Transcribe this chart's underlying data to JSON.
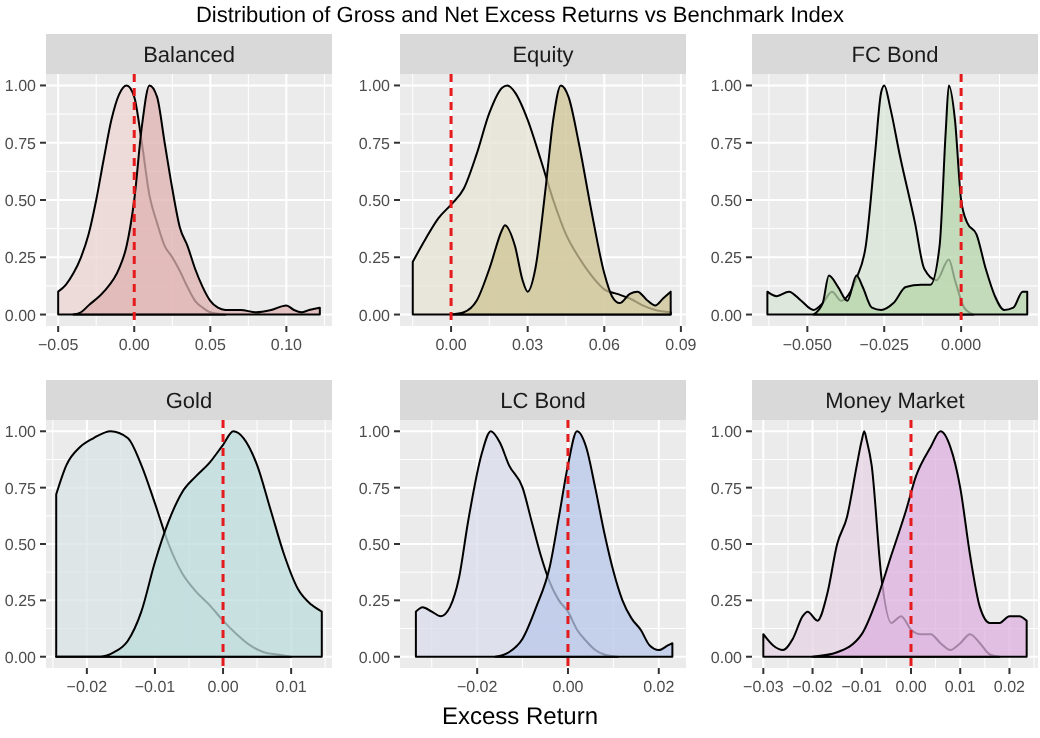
{
  "chart_data": [
    {
      "type": "area",
      "title": "Balanced",
      "annotations": [
        "Distribution of Gross and Net Excess Returns vs Benchmark Index"
      ],
      "grid": true,
      "xlim": [
        -0.058,
        0.13
      ],
      "xticks": [
        {
          "value": -0.05,
          "label": "−0.05"
        },
        {
          "value": 0,
          "label": "0.00"
        },
        {
          "value": 0.05,
          "label": "0.05"
        },
        {
          "value": 0.1,
          "label": "0.10"
        }
      ],
      "ylim": [
        -0.05,
        1.05
      ],
      "yticks": [
        {
          "value": 0,
          "label": "0.00"
        },
        {
          "value": 0.25,
          "label": "0.25"
        },
        {
          "value": 0.5,
          "label": "0.50"
        },
        {
          "value": 0.75,
          "label": "0.75"
        },
        {
          "value": 1,
          "label": "1.00"
        }
      ],
      "ref_lines": [
        {
          "axis": "x",
          "value": 0,
          "color": "#e41a1c",
          "line_style": "dashed"
        }
      ],
      "series": [
        {
          "color": "#ecd5d3",
          "x": [
            -0.05,
            -0.045,
            -0.04,
            -0.035,
            -0.03,
            -0.025,
            -0.02,
            -0.015,
            -0.01,
            -0.005,
            0,
            0.005,
            0.01,
            0.015,
            0.02,
            0.025,
            0.03,
            0.035,
            0.04,
            0.045,
            0.05,
            0.06
          ],
          "values": [
            0.1,
            0.13,
            0.18,
            0.25,
            0.35,
            0.5,
            0.68,
            0.85,
            0.96,
            1.0,
            0.95,
            0.75,
            0.52,
            0.4,
            0.3,
            0.25,
            0.19,
            0.12,
            0.06,
            0.03,
            0.01,
            0
          ]
        },
        {
          "color": "#dfb2b0",
          "x": [
            -0.04,
            -0.035,
            -0.03,
            -0.02,
            -0.01,
            -0.005,
            0,
            0.005,
            0.01,
            0.015,
            0.02,
            0.025,
            0.03,
            0.035,
            0.04,
            0.045,
            0.05,
            0.055,
            0.06,
            0.07,
            0.08,
            0.09,
            0.1,
            0.105,
            0.11,
            0.115,
            0.122
          ],
          "values": [
            0,
            0.01,
            0.04,
            0.1,
            0.2,
            0.3,
            0.5,
            0.82,
            1.0,
            0.95,
            0.75,
            0.55,
            0.38,
            0.3,
            0.2,
            0.12,
            0.06,
            0.03,
            0.02,
            0.02,
            0.01,
            0.02,
            0.04,
            0.02,
            0.01,
            0.02,
            0.03
          ]
        }
      ]
    },
    {
      "type": "area",
      "title": "Equity",
      "grid": true,
      "xlim": [
        -0.02,
        0.092
      ],
      "xticks": [
        {
          "value": 0,
          "label": "0.00"
        },
        {
          "value": 0.03,
          "label": "0.03"
        },
        {
          "value": 0.06,
          "label": "0.06"
        },
        {
          "value": 0.09,
          "label": "0.09"
        }
      ],
      "ylim": [
        -0.05,
        1.05
      ],
      "yticks": [
        {
          "value": 0,
          "label": "0.00"
        },
        {
          "value": 0.25,
          "label": "0.25"
        },
        {
          "value": 0.5,
          "label": "0.50"
        },
        {
          "value": 0.75,
          "label": "0.75"
        },
        {
          "value": 1,
          "label": "1.00"
        }
      ],
      "ref_lines": [
        {
          "axis": "x",
          "value": 0,
          "color": "#e41a1c",
          "line_style": "dashed"
        }
      ],
      "series": [
        {
          "color": "#e7e4d6",
          "x": [
            -0.015,
            -0.01,
            -0.005,
            0,
            0.005,
            0.01,
            0.015,
            0.02,
            0.022,
            0.025,
            0.03,
            0.035,
            0.04,
            0.045,
            0.05,
            0.055,
            0.06,
            0.065,
            0.07,
            0.075,
            0.08,
            0.086
          ],
          "values": [
            0.23,
            0.33,
            0.42,
            0.48,
            0.55,
            0.7,
            0.88,
            0.99,
            1.0,
            0.97,
            0.85,
            0.68,
            0.5,
            0.35,
            0.25,
            0.17,
            0.11,
            0.09,
            0.07,
            0.04,
            0.02,
            0.01
          ]
        },
        {
          "color": "#cfc494",
          "x": [
            0,
            0.005,
            0.01,
            0.015,
            0.02,
            0.021,
            0.025,
            0.028,
            0.03,
            0.033,
            0.037,
            0.04,
            0.043,
            0.046,
            0.05,
            0.055,
            0.06,
            0.063,
            0.066,
            0.07,
            0.073,
            0.077,
            0.08,
            0.083,
            0.086
          ],
          "values": [
            0,
            0.01,
            0.06,
            0.2,
            0.37,
            0.39,
            0.3,
            0.15,
            0.1,
            0.2,
            0.55,
            0.85,
            1.0,
            0.95,
            0.75,
            0.45,
            0.18,
            0.08,
            0.05,
            0.09,
            0.1,
            0.06,
            0.04,
            0.07,
            0.1
          ]
        }
      ]
    },
    {
      "type": "area",
      "title": "FC Bond",
      "grid": true,
      "xlim": [
        -0.068,
        0.025
      ],
      "xticks": [
        {
          "value": -0.05,
          "label": "−0.050"
        },
        {
          "value": -0.025,
          "label": "−0.025"
        },
        {
          "value": 0,
          "label": "0.000"
        }
      ],
      "ylim": [
        -0.05,
        1.05
      ],
      "yticks": [
        {
          "value": 0,
          "label": "0.00"
        },
        {
          "value": 0.25,
          "label": "0.25"
        },
        {
          "value": 0.5,
          "label": "0.50"
        },
        {
          "value": 0.75,
          "label": "0.75"
        },
        {
          "value": 1,
          "label": "1.00"
        }
      ],
      "ref_lines": [
        {
          "axis": "x",
          "value": 0,
          "color": "#e41a1c",
          "line_style": "dashed"
        }
      ],
      "series": [
        {
          "color": "#d9e6d6",
          "x": [
            -0.063,
            -0.06,
            -0.056,
            -0.052,
            -0.048,
            -0.045,
            -0.042,
            -0.039,
            -0.036,
            -0.034,
            -0.031,
            -0.028,
            -0.026,
            -0.025,
            -0.023,
            -0.02,
            -0.015,
            -0.012,
            -0.008,
            -0.004,
            -0.002,
            0.001,
            0.004
          ],
          "values": [
            0.1,
            0.08,
            0.1,
            0.06,
            0.02,
            0.05,
            0.1,
            0.06,
            0.1,
            0.16,
            0.3,
            0.7,
            0.97,
            1.0,
            0.9,
            0.7,
            0.4,
            0.2,
            0.15,
            0.24,
            0.15,
            0.03,
            0
          ]
        },
        {
          "color": "#b5d6aa",
          "x": [
            -0.048,
            -0.045,
            -0.043,
            -0.04,
            -0.037,
            -0.034,
            -0.032,
            -0.029,
            -0.026,
            -0.022,
            -0.018,
            -0.013,
            -0.01,
            -0.007,
            -0.005,
            -0.004,
            -0.002,
            0,
            0.002,
            0.005,
            0.008,
            0.011,
            0.014,
            0.017,
            0.02,
            0.0215
          ],
          "values": [
            0,
            0.05,
            0.17,
            0.12,
            0.06,
            0.17,
            0.12,
            0.03,
            0.02,
            0.05,
            0.12,
            0.13,
            0.13,
            0.3,
            0.8,
            1.0,
            0.85,
            0.5,
            0.4,
            0.35,
            0.2,
            0.08,
            0.02,
            0.03,
            0.1,
            0.1
          ]
        }
      ]
    },
    {
      "type": "area",
      "title": "Gold",
      "grid": true,
      "xlim": [
        -0.026,
        0.016
      ],
      "xticks": [
        {
          "value": -0.02,
          "label": "−0.02"
        },
        {
          "value": -0.01,
          "label": "−0.01"
        },
        {
          "value": 0,
          "label": "0.00"
        },
        {
          "value": 0.01,
          "label": "0.01"
        }
      ],
      "ylim": [
        -0.05,
        1.05
      ],
      "yticks": [
        {
          "value": 0,
          "label": "0.00"
        },
        {
          "value": 0.25,
          "label": "0.25"
        },
        {
          "value": 0.5,
          "label": "0.50"
        },
        {
          "value": 0.75,
          "label": "0.75"
        },
        {
          "value": 1,
          "label": "1.00"
        }
      ],
      "ref_lines": [
        {
          "axis": "x",
          "value": 0,
          "color": "#e41a1c",
          "line_style": "dashed"
        }
      ],
      "series": [
        {
          "color": "#d8e3e4",
          "x": [
            -0.0245,
            -0.023,
            -0.021,
            -0.019,
            -0.0165,
            -0.014,
            -0.012,
            -0.01,
            -0.008,
            -0.006,
            -0.004,
            -0.002,
            0,
            0.002,
            0.004,
            0.006,
            0.008,
            0.01
          ],
          "values": [
            0.72,
            0.85,
            0.93,
            0.97,
            1.0,
            0.97,
            0.85,
            0.68,
            0.5,
            0.37,
            0.29,
            0.23,
            0.16,
            0.1,
            0.05,
            0.02,
            0.01,
            0
          ]
        },
        {
          "color": "#bcdcdc",
          "x": [
            -0.0245,
            -0.018,
            -0.016,
            -0.014,
            -0.012,
            -0.01,
            -0.008,
            -0.006,
            -0.004,
            -0.002,
            0,
            0.0015,
            0.003,
            0.005,
            0.007,
            0.009,
            0.011,
            0.013,
            0.0145
          ],
          "values": [
            0,
            0,
            0.02,
            0.07,
            0.2,
            0.42,
            0.6,
            0.73,
            0.8,
            0.86,
            0.94,
            1.0,
            0.97,
            0.85,
            0.65,
            0.45,
            0.3,
            0.23,
            0.2
          ]
        }
      ]
    },
    {
      "type": "area",
      "title": "LC Bond",
      "xlabel": "Excess Return",
      "grid": true,
      "xlim": [
        -0.037,
        0.026
      ],
      "xticks": [
        {
          "value": -0.02,
          "label": "−0.02"
        },
        {
          "value": 0,
          "label": "0.00"
        },
        {
          "value": 0.02,
          "label": "0.02"
        }
      ],
      "ylim": [
        -0.05,
        1.05
      ],
      "yticks": [
        {
          "value": 0,
          "label": "0.00"
        },
        {
          "value": 0.25,
          "label": "0.25"
        },
        {
          "value": 0.5,
          "label": "0.50"
        },
        {
          "value": 0.75,
          "label": "0.75"
        },
        {
          "value": 1,
          "label": "1.00"
        }
      ],
      "ref_lines": [
        {
          "axis": "x",
          "value": 0,
          "color": "#e41a1c",
          "line_style": "dashed"
        }
      ],
      "series": [
        {
          "color": "#d9deec",
          "x": [
            -0.0335,
            -0.032,
            -0.03,
            -0.028,
            -0.026,
            -0.024,
            -0.022,
            -0.019,
            -0.017,
            -0.015,
            -0.013,
            -0.01,
            -0.008,
            -0.006,
            -0.004,
            -0.002,
            0,
            0.002,
            0.004,
            0.006,
            0.008,
            0.011
          ],
          "values": [
            0.2,
            0.22,
            0.2,
            0.18,
            0.22,
            0.35,
            0.6,
            0.9,
            1.0,
            0.95,
            0.85,
            0.75,
            0.6,
            0.45,
            0.33,
            0.25,
            0.2,
            0.12,
            0.07,
            0.03,
            0.01,
            0
          ]
        },
        {
          "color": "#b8c7ea",
          "x": [
            -0.016,
            -0.013,
            -0.01,
            -0.007,
            -0.004,
            -0.002,
            0,
            0.002,
            0.004,
            0.006,
            0.008,
            0.01,
            0.012,
            0.014,
            0.016,
            0.018,
            0.02,
            0.022,
            0.023
          ],
          "values": [
            0,
            0.02,
            0.08,
            0.22,
            0.4,
            0.62,
            0.85,
            1.0,
            0.93,
            0.75,
            0.55,
            0.38,
            0.25,
            0.17,
            0.12,
            0.05,
            0.03,
            0.05,
            0.06
          ]
        }
      ]
    },
    {
      "type": "area",
      "title": "Money Market",
      "grid": true,
      "xlim": [
        -0.0323,
        0.0258
      ],
      "xticks": [
        {
          "value": -0.03,
          "label": "−0.03"
        },
        {
          "value": -0.02,
          "label": "−0.02"
        },
        {
          "value": -0.01,
          "label": "−0.01"
        },
        {
          "value": 0,
          "label": "0.00"
        },
        {
          "value": 0.01,
          "label": "0.01"
        },
        {
          "value": 0.02,
          "label": "0.02"
        }
      ],
      "ylim": [
        -0.05,
        1.05
      ],
      "yticks": [
        {
          "value": 0,
          "label": "0.00"
        },
        {
          "value": 0.25,
          "label": "0.25"
        },
        {
          "value": 0.5,
          "label": "0.50"
        },
        {
          "value": 0.75,
          "label": "0.75"
        },
        {
          "value": 1,
          "label": "1.00"
        }
      ],
      "ref_lines": [
        {
          "axis": "x",
          "value": 0,
          "color": "#e41a1c",
          "line_style": "dashed"
        }
      ],
      "series": [
        {
          "color": "#e6d4e4",
          "x": [
            -0.03,
            -0.028,
            -0.026,
            -0.024,
            -0.022,
            -0.021,
            -0.019,
            -0.017,
            -0.015,
            -0.013,
            -0.011,
            -0.01,
            -0.0095,
            -0.009,
            -0.008,
            -0.006,
            -0.004,
            -0.002,
            0,
            0.002,
            0.004,
            0.006,
            0.008,
            0.01,
            0.012,
            0.014,
            0.016,
            0.018
          ],
          "values": [
            0.1,
            0.05,
            0.03,
            0.08,
            0.18,
            0.2,
            0.16,
            0.28,
            0.5,
            0.62,
            0.85,
            0.96,
            1.0,
            0.96,
            0.85,
            0.35,
            0.15,
            0.18,
            0.12,
            0.1,
            0.1,
            0.06,
            0.03,
            0.06,
            0.1,
            0.06,
            0.01,
            0
          ]
        },
        {
          "color": "#ddb0df",
          "x": [
            -0.02,
            -0.015,
            -0.01,
            -0.007,
            -0.004,
            -0.001,
            0.001,
            0.004,
            0.006,
            0.008,
            0.01,
            0.012,
            0.014,
            0.016,
            0.018,
            0.02,
            0.022,
            0.0235
          ],
          "values": [
            0,
            0.02,
            0.1,
            0.25,
            0.45,
            0.65,
            0.8,
            0.93,
            1.0,
            0.93,
            0.75,
            0.45,
            0.22,
            0.15,
            0.15,
            0.18,
            0.18,
            0.16
          ]
        }
      ]
    }
  ]
}
